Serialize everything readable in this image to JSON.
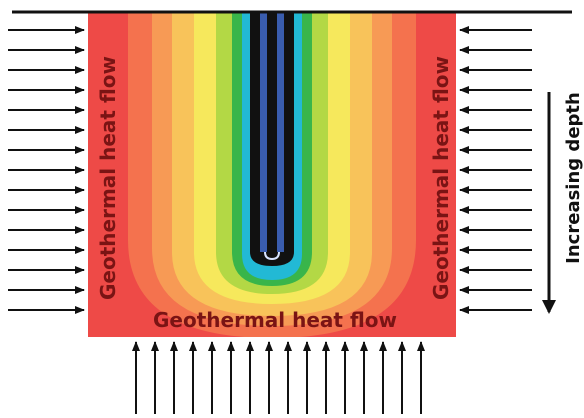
{
  "labels": {
    "left_flow": "Geothermal heat flow",
    "right_flow": "Geothermal heat flow",
    "bottom_flow": "Geothermal heat flow",
    "depth": "Increasing depth"
  },
  "colors": {
    "ground": "#ee4a47",
    "contour_1": "#f4724e",
    "contour_2": "#f79a55",
    "contour_3": "#f8c35a",
    "contour_4": "#f6e85c",
    "contour_5": "#b3d845",
    "contour_6": "#39b54a",
    "contour_7": "#22b9d5",
    "borehole": "#111111",
    "pipe": "#3a5dae",
    "arrow": "#111111",
    "label_text": "#7a1414"
  }
}
